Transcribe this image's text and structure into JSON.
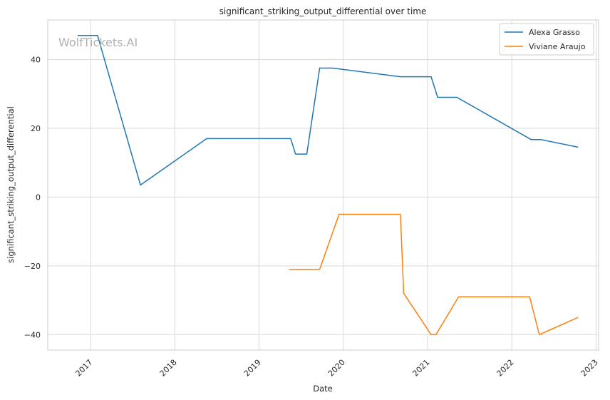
{
  "chart_data": {
    "type": "line",
    "title": "significant_striking_output_differential over time",
    "xlabel": "Date",
    "ylabel": "significant_striking_output_differential",
    "watermark": "WolfTickets.AI",
    "x_ticks": [
      "2017",
      "2018",
      "2019",
      "2020",
      "2021",
      "2022",
      "2023"
    ],
    "y_ticks": [
      -40,
      -20,
      0,
      20,
      40
    ],
    "xlim": [
      "2016-06-29",
      "2023-01-12"
    ],
    "ylim": [
      -44.5,
      51.5
    ],
    "grid": true,
    "legend_position": "top-right",
    "series": [
      {
        "name": "Alexa Grasso",
        "color": "#1f77b4",
        "points": [
          [
            "2016-11-05",
            47
          ],
          [
            "2017-01-31",
            47
          ],
          [
            "2017-08-05",
            3.5
          ],
          [
            "2018-05-19",
            17
          ],
          [
            "2019-05-18",
            17
          ],
          [
            "2019-06-08",
            12.5
          ],
          [
            "2019-07-27",
            12.5
          ],
          [
            "2019-09-21",
            37.5
          ],
          [
            "2019-11-16",
            37.5
          ],
          [
            "2020-09-05",
            35
          ],
          [
            "2021-01-16",
            35
          ],
          [
            "2021-02-13",
            29
          ],
          [
            "2021-05-08",
            29
          ],
          [
            "2022-03-26",
            16.7
          ],
          [
            "2022-05-07",
            16.7
          ],
          [
            "2022-10-15",
            14.5
          ]
        ]
      },
      {
        "name": "Viviane Araujo",
        "color": "#ff7f0e",
        "points": [
          [
            "2019-05-11",
            -21
          ],
          [
            "2019-09-21",
            -21
          ],
          [
            "2019-12-14",
            -5
          ],
          [
            "2020-09-05",
            -5
          ],
          [
            "2020-09-19",
            -28
          ],
          [
            "2021-01-16",
            -40
          ],
          [
            "2021-02-06",
            -40
          ],
          [
            "2021-05-15",
            -29
          ],
          [
            "2022-03-19",
            -29
          ],
          [
            "2022-04-30",
            -40
          ],
          [
            "2022-10-15",
            -35
          ]
        ]
      }
    ]
  }
}
